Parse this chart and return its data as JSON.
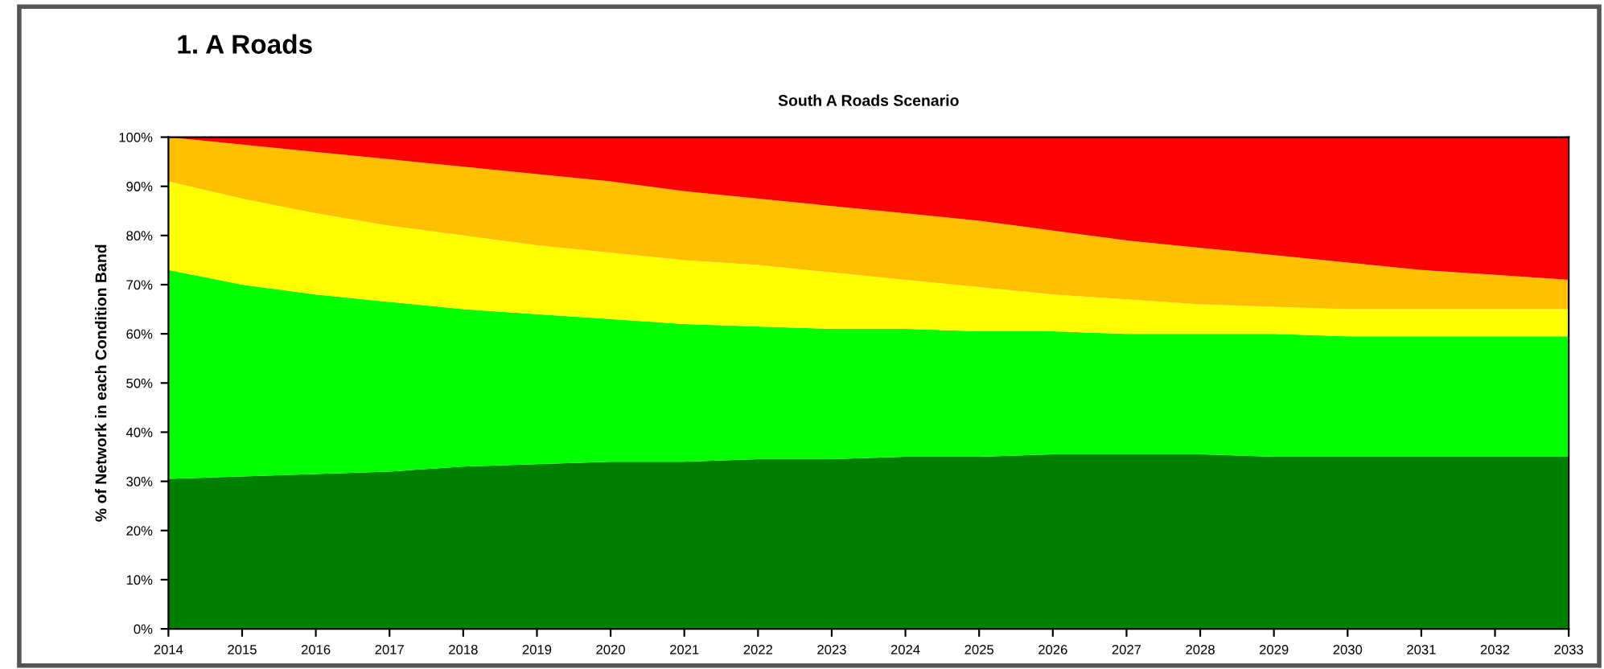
{
  "chart_data": {
    "type": "area",
    "stacked": true,
    "title": "1. A Roads",
    "subtitle": "South A Roads Scenario",
    "ylabel": "% of Network in each Condition Band",
    "categories": [
      "2014",
      "2015",
      "2016",
      "2017",
      "2018",
      "2019",
      "2020",
      "2021",
      "2022",
      "2023",
      "2024",
      "2025",
      "2026",
      "2027",
      "2028",
      "2029",
      "2030",
      "2031",
      "2032",
      "2033"
    ],
    "series": [
      {
        "color": "#008000",
        "values": [
          30.5,
          31,
          31.5,
          32,
          33,
          33.5,
          34,
          34,
          34.5,
          34.5,
          35,
          35,
          35.5,
          35.5,
          35.5,
          35,
          35,
          35,
          35,
          35
        ]
      },
      {
        "color": "#00ff00",
        "values": [
          42.5,
          39,
          36.5,
          34.5,
          32,
          30.5,
          29,
          28,
          27,
          26.5,
          26,
          25.5,
          25,
          24.5,
          24.5,
          25,
          24.5,
          24.5,
          24.5,
          24.5
        ]
      },
      {
        "color": "#ffff00",
        "values": [
          18,
          17.5,
          16.5,
          15.5,
          15,
          14,
          13.5,
          13,
          12.5,
          11.5,
          10,
          9,
          7.5,
          7,
          6,
          5.5,
          5.5,
          5.5,
          5.5,
          5.5
        ]
      },
      {
        "color": "#ffc000",
        "values": [
          9,
          11,
          12.5,
          13.5,
          14,
          14.5,
          14.5,
          14,
          13.5,
          13.5,
          13.5,
          13.5,
          13,
          12,
          11.5,
          10.5,
          9.5,
          8,
          7,
          6
        ]
      },
      {
        "color": "#ff0000",
        "values": [
          0,
          1.5,
          3,
          4.5,
          6,
          7.5,
          9,
          11,
          12.5,
          14,
          15.5,
          17,
          19,
          21,
          22.5,
          24,
          25.5,
          27,
          28,
          29
        ]
      }
    ],
    "ylim": [
      0,
      100
    ],
    "yticks": [
      {
        "value": 0,
        "label": "0%"
      },
      {
        "value": 10,
        "label": "10%"
      },
      {
        "value": 20,
        "label": "20%"
      },
      {
        "value": 30,
        "label": "30%"
      },
      {
        "value": 40,
        "label": "40%"
      },
      {
        "value": 50,
        "label": "50%"
      },
      {
        "value": 60,
        "label": "60%"
      },
      {
        "value": 70,
        "label": "70%"
      },
      {
        "value": 80,
        "label": "80%"
      },
      {
        "value": 90,
        "label": "90%"
      },
      {
        "value": 100,
        "label": "100%"
      }
    ],
    "grid": false,
    "legend": false
  }
}
